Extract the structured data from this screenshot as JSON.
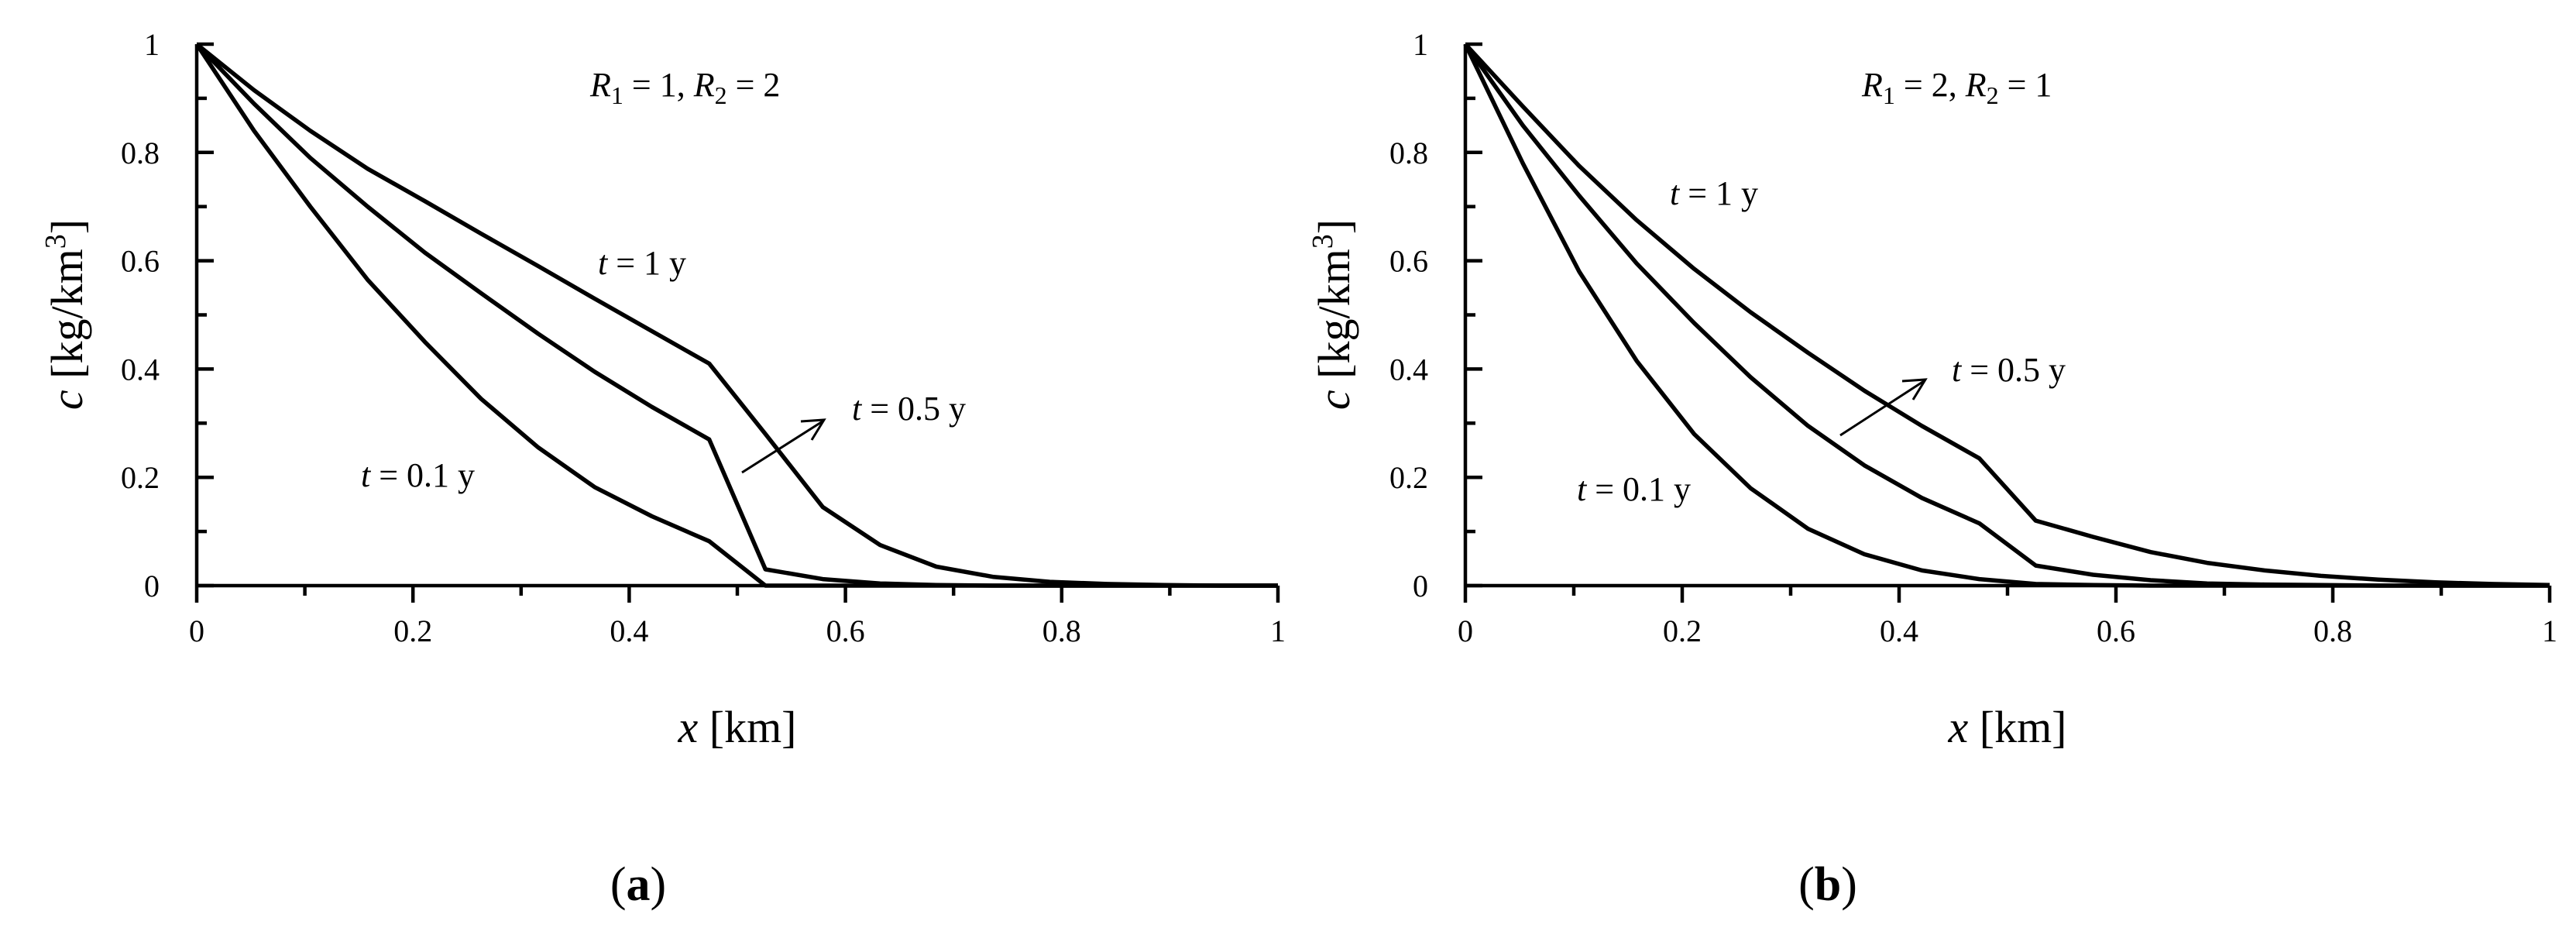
{
  "chart_data": [
    {
      "type": "line",
      "panel_label": "a",
      "annotation": {
        "title_parts": [
          "R",
          "1",
          " = 1, ",
          "R",
          "2",
          " = 2"
        ]
      },
      "xlabel": {
        "var": "x",
        "unit": " [km]"
      },
      "ylabel": {
        "var": "c",
        "unit": " [kg/km",
        "sup": "3",
        "close": "]"
      },
      "xlim": [
        0,
        1
      ],
      "ylim": [
        0,
        1
      ],
      "xticks": [
        "0",
        "0.2",
        "0.4",
        "0.6",
        "0.8",
        "1"
      ],
      "yticks": [
        "0",
        "0.2",
        "0.4",
        "0.6",
        "0.8",
        "1"
      ],
      "grid": false,
      "series": [
        {
          "name": "t = 0.1 y",
          "x": [
            0,
            0.053,
            0.105,
            0.158,
            0.211,
            0.263,
            0.316,
            0.368,
            0.421,
            0.474,
            0.526,
            0.579,
            0.632,
            0.684,
            0.737,
            0.789,
            0.842,
            0.895,
            0.947,
            1.0
          ],
          "y": [
            1.0,
            0.84,
            0.7,
            0.565,
            0.45,
            0.345,
            0.255,
            0.182,
            0.128,
            0.082,
            0.0,
            0,
            0,
            0,
            0,
            0,
            0,
            0,
            0,
            0
          ]
        },
        {
          "name": "t = 0.5 y",
          "x": [
            0,
            0.053,
            0.105,
            0.158,
            0.211,
            0.263,
            0.316,
            0.368,
            0.421,
            0.474,
            0.526,
            0.579,
            0.632,
            0.684,
            0.737,
            0.789,
            0.842,
            0.895,
            0.947,
            1.0
          ],
          "y": [
            1.0,
            0.89,
            0.79,
            0.7,
            0.615,
            0.54,
            0.465,
            0.395,
            0.33,
            0.27,
            0.03,
            0.012,
            0.004,
            0.001,
            0,
            0,
            0,
            0,
            0,
            0
          ]
        },
        {
          "name": "t = 1 y",
          "x": [
            0,
            0.053,
            0.105,
            0.158,
            0.211,
            0.263,
            0.316,
            0.368,
            0.421,
            0.474,
            0.526,
            0.579,
            0.632,
            0.684,
            0.737,
            0.789,
            0.842,
            0.895,
            0.947,
            1.0
          ],
          "y": [
            1.0,
            0.915,
            0.84,
            0.77,
            0.71,
            0.65,
            0.59,
            0.53,
            0.47,
            0.41,
            0.28,
            0.145,
            0.075,
            0.035,
            0.016,
            0.007,
            0.003,
            0.001,
            0,
            0
          ]
        }
      ],
      "labels": {
        "t_01": {
          "parts": [
            "t",
            " = 0.1 y"
          ]
        },
        "t_05": {
          "parts": [
            "t",
            " = 0.5 y"
          ]
        },
        "t_1": {
          "parts": [
            "t",
            " = 1 y"
          ]
        }
      }
    },
    {
      "type": "line",
      "panel_label": "b",
      "annotation": {
        "title_parts": [
          "R",
          "1",
          " = 2, ",
          "R",
          "2",
          " = 1"
        ]
      },
      "xlabel": {
        "var": "x",
        "unit": " [km]"
      },
      "ylabel": {
        "var": "c",
        "unit": " [kg/km",
        "sup": "3",
        "close": "]"
      },
      "xlim": [
        0,
        1
      ],
      "ylim": [
        0,
        1
      ],
      "xticks": [
        "0",
        "0.2",
        "0.4",
        "0.6",
        "0.8",
        "1"
      ],
      "yticks": [
        "0",
        "0.2",
        "0.4",
        "0.6",
        "0.8",
        "1"
      ],
      "grid": false,
      "series": [
        {
          "name": "t = 0.1 y",
          "x": [
            0,
            0.053,
            0.105,
            0.158,
            0.211,
            0.263,
            0.316,
            0.368,
            0.421,
            0.474,
            0.526,
            0.579,
            0.632,
            0.684,
            0.737,
            0.789,
            0.842,
            0.895,
            0.947,
            1.0
          ],
          "y": [
            1.0,
            0.78,
            0.58,
            0.415,
            0.28,
            0.18,
            0.105,
            0.058,
            0.028,
            0.012,
            0.003,
            0.001,
            0,
            0,
            0,
            0,
            0,
            0,
            0,
            0
          ]
        },
        {
          "name": "t = 0.5 y",
          "x": [
            0,
            0.053,
            0.105,
            0.158,
            0.211,
            0.263,
            0.316,
            0.368,
            0.421,
            0.474,
            0.526,
            0.579,
            0.632,
            0.684,
            0.737,
            0.789,
            0.842,
            0.895,
            0.947,
            1.0
          ],
          "y": [
            1.0,
            0.85,
            0.72,
            0.595,
            0.485,
            0.385,
            0.295,
            0.222,
            0.162,
            0.115,
            0.037,
            0.02,
            0.01,
            0.004,
            0.002,
            0.001,
            0,
            0,
            0,
            0
          ]
        },
        {
          "name": "t = 1 y",
          "x": [
            0,
            0.053,
            0.105,
            0.158,
            0.211,
            0.263,
            0.316,
            0.368,
            0.421,
            0.474,
            0.526,
            0.579,
            0.632,
            0.684,
            0.737,
            0.789,
            0.842,
            0.895,
            0.947,
            1.0
          ],
          "y": [
            1.0,
            0.885,
            0.775,
            0.675,
            0.585,
            0.505,
            0.43,
            0.36,
            0.295,
            0.235,
            0.12,
            0.09,
            0.062,
            0.042,
            0.028,
            0.018,
            0.011,
            0.006,
            0.003,
            0.001
          ]
        }
      ],
      "labels": {
        "t_01": {
          "parts": [
            "t",
            " = 0.1 y"
          ]
        },
        "t_05": {
          "parts": [
            "t",
            " = 0.5 y"
          ]
        },
        "t_1": {
          "parts": [
            "t",
            " = 1 y"
          ]
        }
      }
    }
  ]
}
